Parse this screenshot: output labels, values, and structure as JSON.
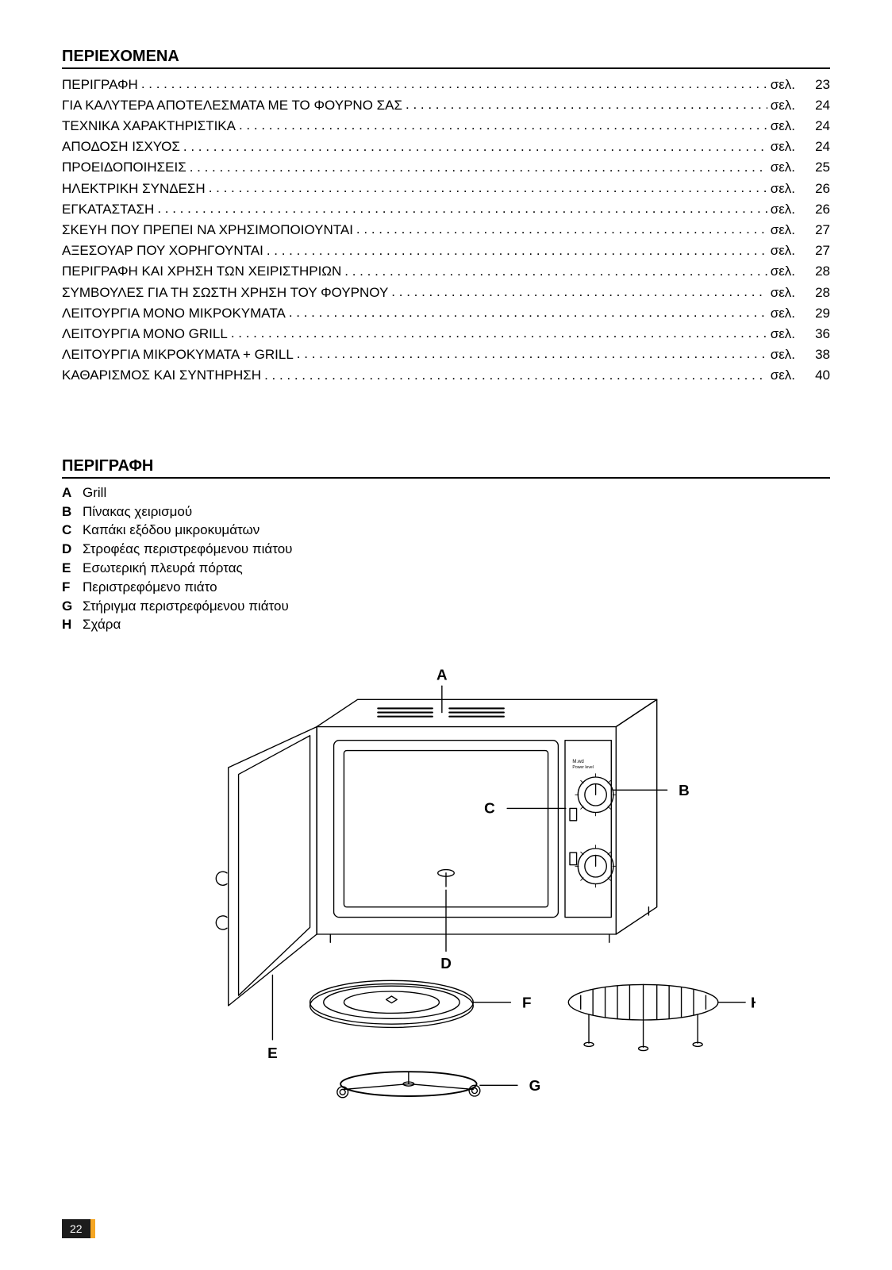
{
  "toc": {
    "heading": "ΠΕΡΙΕΧΟΜΕΝΑ",
    "page_prefix": "σελ.",
    "items": [
      {
        "label": "ΠΕΡΙΓΡΑΦΗ",
        "page": "23"
      },
      {
        "label": "ΓΙΑ ΚΑΛΥΤΕΡΑ ΑΠΟΤΕΛΕΣΜΑΤΑ ΜΕ ΤΟ ΦΟΥΡΝΟ ΣΑΣ",
        "page": "24"
      },
      {
        "label": "ΤΕΧΝΙΚΑ ΧΑΡΑΚΤΗΡΙΣΤΙΚΑ",
        "page": "24"
      },
      {
        "label": "ΑΠΟΔΟΣΗ ΙΣΧΥΟΣ",
        "page": "24"
      },
      {
        "label": "ΠΡΟΕΙΔΟΠΟΙΗΣΕΙΣ",
        "page": "25"
      },
      {
        "label": "ΗΛΕΚΤΡΙΚΗ ΣΥΝΔΕΣΗ",
        "page": "26"
      },
      {
        "label": "ΕΓΚΑΤΑΣΤΑΣΗ",
        "page": "26"
      },
      {
        "label": "ΣΚΕΥΗ ΠΟΥ ΠΡΕΠΕΙ ΝΑ ΧΡΗΣΙΜΟΠΟΙΟΥΝΤΑΙ",
        "page": "27"
      },
      {
        "label": "ΑΞΕΣΟΥΑΡ ΠΟΥ ΧΟΡΗΓΟΥΝΤΑΙ",
        "page": "27"
      },
      {
        "label": "ΠΕΡΙΓΡΑΦΗ ΚΑΙ ΧΡΗΣΗ ΤΩΝ ΧΕΙΡΙΣΤΗΡΙΩΝ",
        "page": "28"
      },
      {
        "label": "ΣΥΜΒΟΥΛΕΣ ΓΙΑ ΤΗ ΣΩΣΤΗ ΧΡΗΣΗ ΤΟΥ ΦΟΥΡΝΟΥ",
        "page": "28"
      },
      {
        "label": "ΛΕΙΤΟΥΡΓΙΑ ΜΟΝΟ ΜΙΚΡΟΚΥΜΑΤΑ",
        "page": "29"
      },
      {
        "label": "ΛΕΙΤΟΥΡΓΙΑ ΜΟΝΟ GRILL",
        "page": "36"
      },
      {
        "label": "ΛΕΙΤΟΥΡΓΙΑ ΜΙΚΡΟΚΥΜΑΤΑ + GRILL",
        "page": "38"
      },
      {
        "label": "ΚΑΘΑΡΙΣΜΟΣ ΚΑΙ ΣΥΝΤΗΡΗΣΗ",
        "page": "40"
      }
    ]
  },
  "description": {
    "heading": "ΠΕΡΙΓΡΑΦΗ",
    "items": [
      {
        "key": "A",
        "text": "Grill"
      },
      {
        "key": "B",
        "text": "Πίνακας χειρισμού"
      },
      {
        "key": "C",
        "text": "Καπάκι εξόδου μικροκυμάτων"
      },
      {
        "key": "D",
        "text": "Στροφέας περιστρεφόμενου πιάτου"
      },
      {
        "key": "E",
        "text": "Εσωτερική πλευρά πόρτας"
      },
      {
        "key": "F",
        "text": "Περιστρεφόμενο πιάτο"
      },
      {
        "key": "G",
        "text": "Στήριγμα περιστρεφόμενου πιάτου"
      },
      {
        "key": "H",
        "text": "Σχάρα"
      }
    ]
  },
  "diagram": {
    "labels": {
      "A": "A",
      "B": "B",
      "C": "C",
      "D": "D",
      "E": "E",
      "F": "F",
      "G": "G",
      "H": "H"
    },
    "label_fontsize": 22,
    "label_fontweight": "bold",
    "stroke": "#000000",
    "stroke_width": 1.6,
    "fill": "#ffffff"
  },
  "page_number": "22"
}
